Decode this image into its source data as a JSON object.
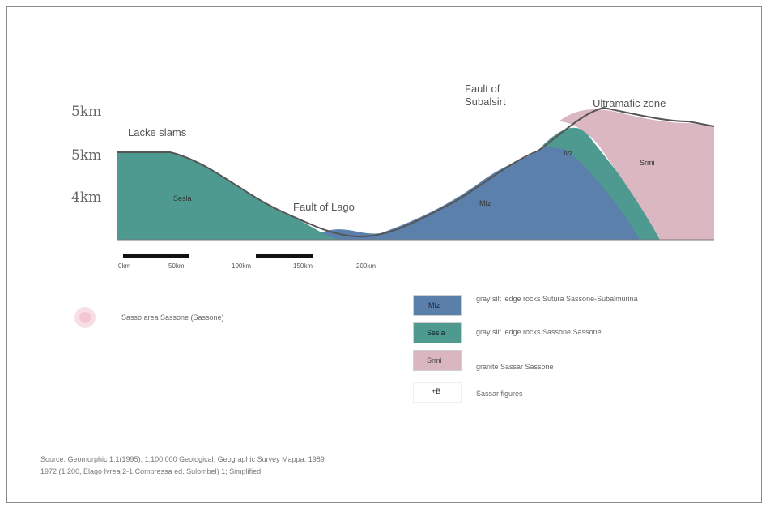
{
  "elevation_labels": [
    "5km",
    "5km",
    "4km"
  ],
  "sites": {
    "left": "Lacke slams",
    "middle": "Fault of Lago",
    "right_top_line1": "Fault of",
    "right_top_line2": "Subalsirt",
    "right": "Ultramafic zone"
  },
  "units": {
    "left_green": "Sesla",
    "middle_blue": "Mfz",
    "right_green": "Ivz",
    "right_pink": "Srmi"
  },
  "scale": {
    "ticks": [
      "0km",
      "50km",
      "100km",
      "150km",
      "200km"
    ]
  },
  "legend": {
    "items": [
      {
        "swatch_label": "Mfz",
        "text": "gray silt ledge rocks Sutura Sassone-Subalmurina",
        "color": "#5a7fab"
      },
      {
        "swatch_label": "Sesla",
        "text": "gray silt ledge rocks Sassone Sassone",
        "color": "#4f9a8f"
      },
      {
        "swatch_label": "Srmi",
        "text": "granite Sassar Sassone",
        "color": "#d9b6c0"
      },
      {
        "swatch_label": "+B",
        "text": "Sassar figures",
        "color": "#ffffff"
      }
    ],
    "left_marker_text": "Sasso area Sassone (Sassone)"
  },
  "colors": {
    "blue": "#5b80ac",
    "green": "#4f9a90",
    "pink": "#dab7c1",
    "outline": "#555555"
  },
  "caption": {
    "line1": "Source: Geomorphic 1:1(1995), 1:100,000 Geological; Geographic Survey Mappa, 1989",
    "line2": "1972 (1:200, Elago Ivrea 2-1 Compressa ed. Sulombel) 1; Simplified"
  }
}
